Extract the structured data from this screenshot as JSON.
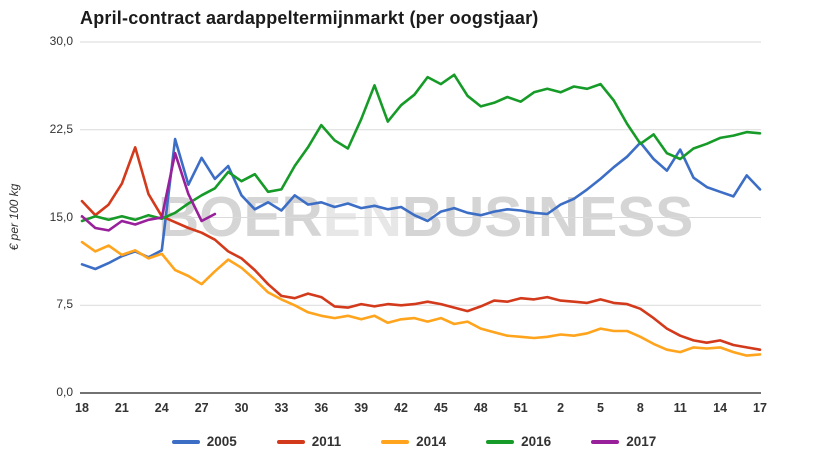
{
  "title": "April-contract aardappeltermijnmarkt (per oogstjaar)",
  "watermark": {
    "text": "BOERENBUSINESS",
    "part1": "BOER",
    "part2": "EN",
    "part3": "BUSINESS"
  },
  "chart_data": {
    "type": "line",
    "title": "April-contract aardappeltermijnmarkt (per oogstjaar)",
    "xlabel": "",
    "ylabel": "€ per 100 kg",
    "ylim": [
      0,
      30
    ],
    "grid": "horizontal",
    "legend_position": "bottom",
    "x_unit": "weeknumber",
    "weeks": [
      18,
      19,
      20,
      21,
      22,
      23,
      24,
      25,
      26,
      27,
      28,
      29,
      30,
      31,
      32,
      33,
      34,
      35,
      36,
      37,
      38,
      39,
      40,
      41,
      42,
      43,
      44,
      45,
      46,
      47,
      48,
      49,
      50,
      51,
      52,
      1,
      2,
      3,
      4,
      5,
      6,
      7,
      8,
      9,
      10,
      11,
      12,
      13,
      14,
      15,
      16,
      17
    ],
    "xtick_indices": [
      0,
      3,
      6,
      9,
      12,
      15,
      18,
      21,
      24,
      27,
      30,
      33,
      36,
      39,
      42,
      45,
      48,
      51
    ],
    "xtick_labels": [
      "18",
      "21",
      "24",
      "27",
      "30",
      "33",
      "36",
      "39",
      "42",
      "45",
      "48",
      "51",
      "2",
      "5",
      "8",
      "11",
      "14",
      "17"
    ],
    "ytick_values": [
      0,
      7.5,
      15,
      22.5,
      30
    ],
    "ytick_labels": [
      "0,0",
      "7,5",
      "15,0",
      "22,5",
      "30,0"
    ],
    "series": [
      {
        "name": "2005",
        "color": "#3D6EC6",
        "values": [
          11.0,
          10.6,
          11.1,
          11.7,
          12.1,
          11.6,
          12.2,
          21.7,
          17.8,
          20.1,
          18.3,
          19.4,
          16.9,
          15.7,
          16.3,
          15.6,
          16.9,
          16.1,
          16.3,
          15.9,
          16.2,
          15.8,
          16.0,
          15.7,
          15.9,
          15.2,
          14.7,
          15.5,
          15.8,
          15.4,
          15.2,
          15.5,
          15.7,
          15.6,
          15.4,
          15.3,
          16.1,
          16.6,
          17.4,
          18.3,
          19.3,
          20.2,
          21.4,
          20.0,
          19.0,
          20.8,
          18.4,
          17.6,
          17.2,
          16.8,
          18.6,
          17.4
        ]
      },
      {
        "name": "2011",
        "color": "#D33A1C",
        "values": [
          16.4,
          15.2,
          16.1,
          17.9,
          21.0,
          17.0,
          15.1,
          14.6,
          14.1,
          13.7,
          13.1,
          12.1,
          11.5,
          10.5,
          9.3,
          8.3,
          8.1,
          8.5,
          8.2,
          7.4,
          7.3,
          7.6,
          7.4,
          7.6,
          7.5,
          7.6,
          7.8,
          7.6,
          7.3,
          7.0,
          7.4,
          7.9,
          7.8,
          8.1,
          8.0,
          8.2,
          7.9,
          7.8,
          7.7,
          8.0,
          7.7,
          7.6,
          7.2,
          6.4,
          5.5,
          4.9,
          4.5,
          4.3,
          4.5,
          4.1,
          3.9,
          3.7
        ]
      },
      {
        "name": "2014",
        "color": "#FFA41C",
        "values": [
          12.9,
          12.1,
          12.6,
          11.8,
          12.2,
          11.5,
          11.9,
          10.5,
          10.0,
          9.3,
          10.4,
          11.4,
          10.7,
          9.7,
          8.6,
          8.0,
          7.5,
          6.9,
          6.6,
          6.4,
          6.6,
          6.3,
          6.6,
          6.0,
          6.3,
          6.4,
          6.1,
          6.4,
          5.9,
          6.1,
          5.5,
          5.2,
          4.9,
          4.8,
          4.7,
          4.8,
          5.0,
          4.9,
          5.1,
          5.5,
          5.3,
          5.3,
          4.8,
          4.2,
          3.7,
          3.5,
          3.9,
          3.8,
          3.9,
          3.5,
          3.2,
          3.3
        ]
      },
      {
        "name": "2016",
        "color": "#179B28",
        "values": [
          14.7,
          15.1,
          14.8,
          15.1,
          14.8,
          15.2,
          14.9,
          15.4,
          16.2,
          16.9,
          17.5,
          18.9,
          18.1,
          18.7,
          17.2,
          17.4,
          19.4,
          21.0,
          22.9,
          21.6,
          20.9,
          23.4,
          26.3,
          23.2,
          24.6,
          25.5,
          27.0,
          26.4,
          27.2,
          25.4,
          24.5,
          24.8,
          25.3,
          24.9,
          25.7,
          26.0,
          25.7,
          26.2,
          26.0,
          26.4,
          25.0,
          23.0,
          21.3,
          22.1,
          20.5,
          20.0,
          20.9,
          21.3,
          21.8,
          22.0,
          22.3,
          22.2
        ]
      },
      {
        "name": "2017",
        "color": "#99209B",
        "values": [
          15.1,
          14.1,
          13.9,
          14.7,
          14.4,
          14.8,
          15.0,
          20.5,
          17.0,
          14.7,
          15.3,
          null,
          null,
          null,
          null,
          null,
          null,
          null,
          null,
          null,
          null,
          null,
          null,
          null,
          null,
          null,
          null,
          null,
          null,
          null,
          null,
          null,
          null,
          null,
          null,
          null,
          null,
          null,
          null,
          null,
          null,
          null,
          null,
          null,
          null,
          null,
          null,
          null,
          null,
          null,
          null,
          null
        ]
      }
    ],
    "colors": {
      "grid": "#DADADA",
      "axis": "#444444",
      "text": "#333333",
      "watermark": "#D5D5D5"
    }
  }
}
